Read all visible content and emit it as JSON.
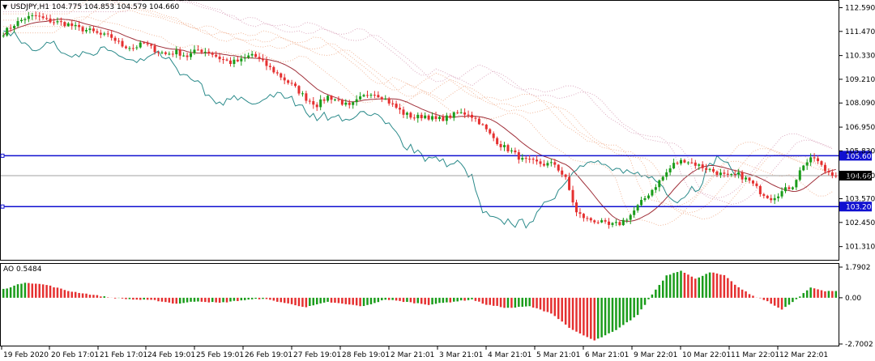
{
  "header": {
    "symbol_line": "USDJPY,H1  104.775 104.853 104.579 104.660",
    "ao_label": "AO 0.5484"
  },
  "colors": {
    "up": "#1a9c1a",
    "down": "#e53030",
    "ma": "#a0303a",
    "chikou": "#2a8a8a",
    "kumo": "#f0b090",
    "kumo2": "#d8a0b8",
    "hline": "#1010d0",
    "price_box": "#000000",
    "level_box": "#1010d0"
  },
  "chart_data": [
    {
      "type": "candlestick",
      "title": "USDJPY,H1",
      "ohlc_header": {
        "open": 104.775,
        "high": 104.853,
        "low": 104.579,
        "close": 104.66
      },
      "y_ticks": [
        "112.590",
        "111.470",
        "110.330",
        "109.210",
        "108.090",
        "106.950",
        "105.830",
        "104.660",
        "103.570",
        "102.450",
        "101.310"
      ],
      "ylim": [
        100.8,
        112.8
      ],
      "x_ticks": [
        "19 Feb 2020",
        "20 Feb 17:01",
        "21 Feb 17:01",
        "24 Feb 19:01",
        "25 Feb 19:01",
        "26 Feb 19:01",
        "27 Feb 19:01",
        "28 Feb 19:01",
        "2 Mar 21:01",
        "3 Mar 21:01",
        "4 Mar 21:01",
        "5 Mar 21:01",
        "6 Mar 21:01",
        "9 Mar 22:01",
        "10 Mar 22:01",
        "11 Mar 22:01",
        "12 Mar 22:01"
      ],
      "levels": [
        {
          "label": "105.600",
          "value": 105.6
        },
        {
          "label": "103.200",
          "value": 103.2
        }
      ],
      "current_price": {
        "label": "104.660",
        "value": 104.66
      },
      "close_path": [
        [
          0,
          111.4
        ],
        [
          3,
          111.8
        ],
        [
          6,
          112.1
        ],
        [
          9,
          112.2
        ],
        [
          12,
          112.0
        ],
        [
          15,
          111.9
        ],
        [
          18,
          111.8
        ],
        [
          21,
          111.6
        ],
        [
          24,
          111.5
        ],
        [
          27,
          111.3
        ],
        [
          30,
          111.2
        ],
        [
          33,
          110.8
        ],
        [
          36,
          110.7
        ],
        [
          39,
          110.9
        ],
        [
          42,
          110.6
        ],
        [
          45,
          110.4
        ],
        [
          48,
          110.5
        ],
        [
          51,
          110.3
        ],
        [
          54,
          110.6
        ],
        [
          57,
          110.5
        ],
        [
          60,
          110.2
        ],
        [
          63,
          110.0
        ],
        [
          66,
          110.1
        ],
        [
          69,
          110.4
        ],
        [
          72,
          110.0
        ],
        [
          75,
          109.6
        ],
        [
          78,
          109.2
        ],
        [
          81,
          108.8
        ],
        [
          84,
          108.3
        ],
        [
          87,
          108.0
        ],
        [
          90,
          108.4
        ],
        [
          93,
          108.2
        ],
        [
          96,
          107.9
        ],
        [
          99,
          108.3
        ],
        [
          102,
          108.6
        ],
        [
          105,
          108.4
        ],
        [
          108,
          108.0
        ],
        [
          111,
          107.6
        ],
        [
          114,
          107.4
        ],
        [
          117,
          107.5
        ],
        [
          120,
          107.3
        ],
        [
          123,
          107.4
        ],
        [
          126,
          107.6
        ],
        [
          129,
          107.6
        ],
        [
          132,
          107.2
        ],
        [
          135,
          106.6
        ],
        [
          138,
          106.1
        ],
        [
          141,
          105.8
        ],
        [
          144,
          105.4
        ],
        [
          147,
          105.3
        ],
        [
          150,
          105.2
        ],
        [
          153,
          105.2
        ],
        [
          156,
          104.5
        ],
        [
          159,
          102.9
        ],
        [
          162,
          102.6
        ],
        [
          165,
          102.5
        ],
        [
          168,
          102.3
        ],
        [
          171,
          102.4
        ],
        [
          174,
          102.8
        ],
        [
          177,
          103.4
        ],
        [
          180,
          104.0
        ],
        [
          183,
          104.6
        ],
        [
          186,
          105.2
        ],
        [
          189,
          105.4
        ],
        [
          192,
          105.2
        ],
        [
          195,
          105.0
        ],
        [
          198,
          104.8
        ],
        [
          201,
          104.6
        ],
        [
          204,
          104.7
        ],
        [
          207,
          104.4
        ],
        [
          210,
          103.9
        ],
        [
          213,
          103.6
        ],
        [
          216,
          103.9
        ],
        [
          219,
          104.2
        ],
        [
          222,
          105.2
        ],
        [
          225,
          105.5
        ],
        [
          228,
          104.9
        ],
        [
          231,
          104.7
        ]
      ],
      "ao": {
        "label": "AO 0.5484",
        "y_ticks": [
          "1.7902",
          "0.00",
          "-2.7002"
        ],
        "ylim": [
          -2.7002,
          1.7902
        ],
        "last_value": 0.5484,
        "path": [
          [
            0,
            0.5
          ],
          [
            6,
            0.9
          ],
          [
            12,
            0.75
          ],
          [
            18,
            0.4
          ],
          [
            24,
            0.2
          ],
          [
            30,
            0.0
          ],
          [
            36,
            -0.1
          ],
          [
            42,
            -0.15
          ],
          [
            48,
            -0.35
          ],
          [
            54,
            -0.2
          ],
          [
            60,
            -0.3
          ],
          [
            66,
            -0.15
          ],
          [
            72,
            -0.05
          ],
          [
            78,
            -0.3
          ],
          [
            84,
            -0.55
          ],
          [
            90,
            -0.25
          ],
          [
            96,
            -0.4
          ],
          [
            100,
            -0.5
          ],
          [
            106,
            -0.1
          ],
          [
            112,
            -0.25
          ],
          [
            118,
            -0.4
          ],
          [
            124,
            -0.25
          ],
          [
            130,
            -0.1
          ],
          [
            134,
            -0.4
          ],
          [
            140,
            -0.6
          ],
          [
            146,
            -0.5
          ],
          [
            152,
            -0.9
          ],
          [
            158,
            -1.9
          ],
          [
            164,
            -2.5
          ],
          [
            170,
            -1.9
          ],
          [
            176,
            -1.0
          ],
          [
            180,
            0.2
          ],
          [
            184,
            1.3
          ],
          [
            188,
            1.6
          ],
          [
            192,
            1.1
          ],
          [
            196,
            1.5
          ],
          [
            200,
            1.3
          ],
          [
            204,
            0.6
          ],
          [
            208,
            0.1
          ],
          [
            212,
            -0.2
          ],
          [
            216,
            -0.7
          ],
          [
            220,
            -0.1
          ],
          [
            224,
            0.6
          ],
          [
            228,
            0.4
          ]
        ]
      }
    }
  ]
}
